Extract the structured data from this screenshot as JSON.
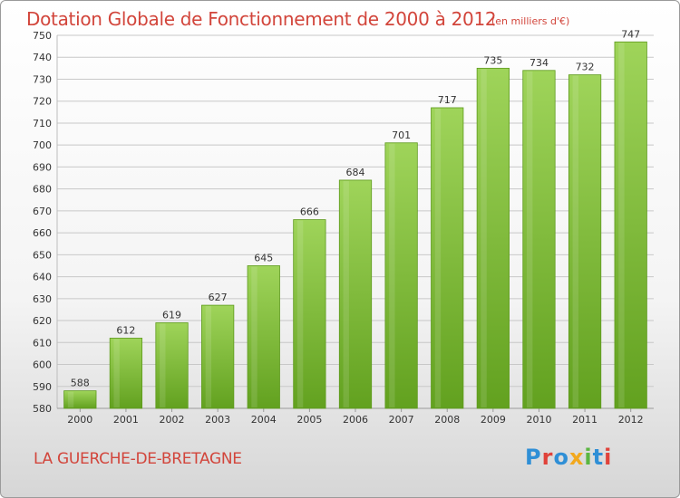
{
  "header": {
    "title": "Dotation Globale de Fonctionnement de 2000 à 2012",
    "unit": "(en milliers d'€)"
  },
  "footer": {
    "commune": "LA GUERCHE-DE-BRETAGNE",
    "logo": {
      "letters": [
        "P",
        "r",
        "o",
        "x",
        "i",
        "t",
        "i"
      ],
      "colors": [
        "#2f8fd6",
        "#e0423a",
        "#2f8fd6",
        "#f2a81d",
        "#5bb641",
        "#2f8fd6",
        "#e0423a"
      ]
    }
  },
  "chart_data": {
    "type": "bar",
    "title": "Dotation Globale de Fonctionnement de 2000 à 2012",
    "subtitle": "(en milliers d'€)",
    "categories": [
      "2000",
      "2001",
      "2002",
      "2003",
      "2004",
      "2005",
      "2006",
      "2007",
      "2008",
      "2009",
      "2010",
      "2011",
      "2012"
    ],
    "values": [
      588,
      612,
      619,
      627,
      645,
      666,
      684,
      701,
      717,
      735,
      734,
      732,
      747
    ],
    "ylim": [
      580,
      750
    ],
    "yticks": [
      580,
      590,
      600,
      610,
      620,
      630,
      640,
      650,
      660,
      670,
      680,
      690,
      700,
      710,
      720,
      730,
      740,
      750
    ],
    "grid": true,
    "legend": "none",
    "bar_color": "#8cc63f",
    "bar_color_dark": "#5e9a1d"
  }
}
